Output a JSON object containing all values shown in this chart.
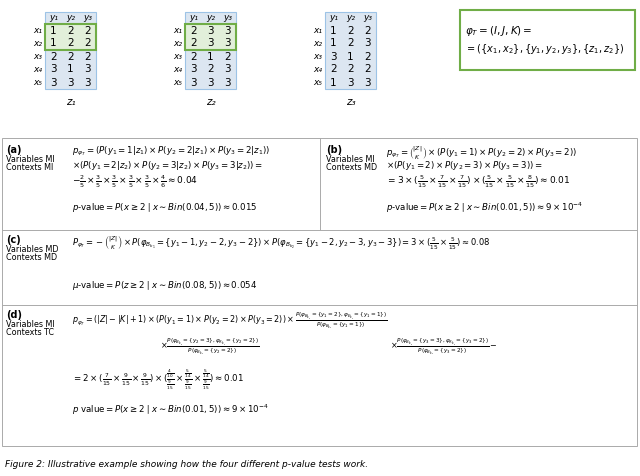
{
  "bg_color": "#ffffff",
  "matrix_bg": "#dce6f1",
  "highlight_green": "#70ad47",
  "highlight_green_bg": "#e2efda",
  "border_color": "#aaaaaa",
  "matrix1_data": [
    [
      1,
      2,
      2
    ],
    [
      1,
      2,
      2
    ],
    [
      2,
      2,
      2
    ],
    [
      3,
      1,
      3
    ],
    [
      3,
      3,
      3
    ]
  ],
  "matrix2_data": [
    [
      2,
      3,
      3
    ],
    [
      2,
      3,
      3
    ],
    [
      2,
      1,
      2
    ],
    [
      3,
      2,
      3
    ],
    [
      3,
      3,
      3
    ]
  ],
  "matrix3_data": [
    [
      1,
      2,
      2
    ],
    [
      1,
      2,
      3
    ],
    [
      3,
      1,
      2
    ],
    [
      2,
      2,
      2
    ],
    [
      1,
      3,
      3
    ]
  ],
  "col_headers": [
    "y₁",
    "y₂",
    "y₃"
  ],
  "row_headers": [
    "x₁",
    "x₂",
    "x₃",
    "x₄",
    "x₅"
  ],
  "z_labels": [
    "z₁",
    "z₂",
    "z₃"
  ],
  "hl_rows_m1": [
    0,
    1
  ],
  "hl_rows_m2": [
    0,
    1
  ],
  "phi_line1": "$\\varphi_T = (I, J, K) =$",
  "phi_line2": "$= (\\{x_1, x_2\\}, \\{y_1, y_2, y_3\\}, \\{z_1, z_2\\})$",
  "sec_a_label": "(a)",
  "sec_a_tag1": "Variables MI",
  "sec_a_tag2": "Contexts MI",
  "sec_a_f1": "$p_{\\varphi_T} = (P(y_1 = 1|z_1) \\times P(y_2 = 2|z_1) \\times P(y_3 = 2|z_1))$",
  "sec_a_f2": "$\\times (P(y_1 = 2|z_2) \\times P(y_2 = 3|z_2) \\times P(y_3 = 3|z_2)) =$",
  "sec_a_f3": "$-\\frac{2}{5} \\times \\frac{3}{5} \\times \\frac{3}{5} \\times \\frac{3}{5} \\times \\frac{3}{5} \\times \\frac{4}{6} \\approx 0.04$",
  "sec_a_pv": "$p\\text{-value} = P(x \\geq 2 \\mid x \\sim Bin(0.04, 5)) \\approx 0.015$",
  "sec_b_label": "(b)",
  "sec_b_tag1": "Variables MI",
  "sec_b_tag2": "Contexts MD",
  "sec_b_f1": "$p_{\\varphi_T} = \\binom{|Z|}{K} \\times (P(y_1 = 1) \\times P(y_2 = 2) \\times P(y_3 = 2))$",
  "sec_b_f2": "$\\times (P(y_1 = 2) \\times P(y_2 = 3) \\times P(y_3 = 3)) =$",
  "sec_b_f3": "$= 3 \\times (\\frac{5}{15} \\times \\frac{7}{15} \\times \\frac{7}{15}) \\times (\\frac{5}{15} \\times \\frac{5}{15} \\times \\frac{8}{15}) \\approx 0.01$",
  "sec_b_pv": "$p\\text{-value} = P(x \\geq 2 \\mid x \\sim Bin(0.01, 5)) \\approx 9 \\times 10^{-4}$",
  "sec_c_label": "(c)",
  "sec_c_tag1": "Variables MD",
  "sec_c_tag2": "Contexts MD",
  "sec_c_f1": "$P_{\\varphi_T} = -\\binom{|Z|}{K} \\times P(\\varphi_{B_{k_1}} = \\{y_1 - 1, y_2 - 2, y_3 - 2\\}) \\times P(\\varphi_{B_{k_2}} = \\{y_1 - 2, y_2 - 3, y_3 - 3\\}) = 3 \\times (\\frac{5}{15} \\times \\frac{5}{15}) \\approx 0.08$",
  "sec_c_pv": "$\\mu\\text{-value} = P(z \\geq 2 \\mid x \\sim Bin(0.08, 5)) \\approx 0.054$",
  "sec_d_label": "(d)",
  "sec_d_tag1": "Variables MI",
  "sec_d_tag2": "Contexts TC",
  "sec_d_f1": "$p_{\\varphi_T} = (|Z| - |K| + 1) \\times (P(y_1 = 1) \\times P(y_2 = 2) \\times P(y_3 = 2)) \\times \\frac{P(\\varphi_{B_{k_2}} = \\{y_1 = 2\\}, \\varphi_{E_{k_1}} = \\{y_1 = 1\\})}{P(\\varphi_{B_{k_1}} = \\{y_1 = 1\\})}$",
  "sec_d_f2a": "$\\times \\frac{P(\\varphi_{B_{k_2}} = \\{y_2 = 3\\}, \\varphi_{R_{k_1}} = \\{y_2 = 2\\})}{P(\\varphi_{B_{k_1}} = \\{y_2 = 2\\})}$",
  "sec_d_f2b": "$\\times \\frac{P(\\varphi_{B_{k_2}} = \\{y_3 = 3\\}, \\varphi_{R_{k_2}} = \\{y_3 = 2\\})}{P(\\varphi_{B_{k_1}} = \\{y_3 = 2\\})} -$",
  "sec_d_f3": "$= 2 \\times (\\frac{7}{15} \\times \\frac{9}{15} \\times \\frac{9}{15}) \\times (\\frac{\\frac{4}{10}}{\\frac{9}{15}} \\times \\frac{\\frac{5}{14}}{\\frac{9}{15}} \\times \\frac{\\frac{5}{14}}{\\frac{9}{15}}) \\approx 0.01$",
  "sec_d_pv": "$p\\text{ value} = P(x \\geq 2 \\mid x \\sim Bin(0.01, 5)) \\approx 9 \\times 10^{-4}$",
  "caption": "Figure 2: Illustrative example showing how the four different p-value tests work."
}
